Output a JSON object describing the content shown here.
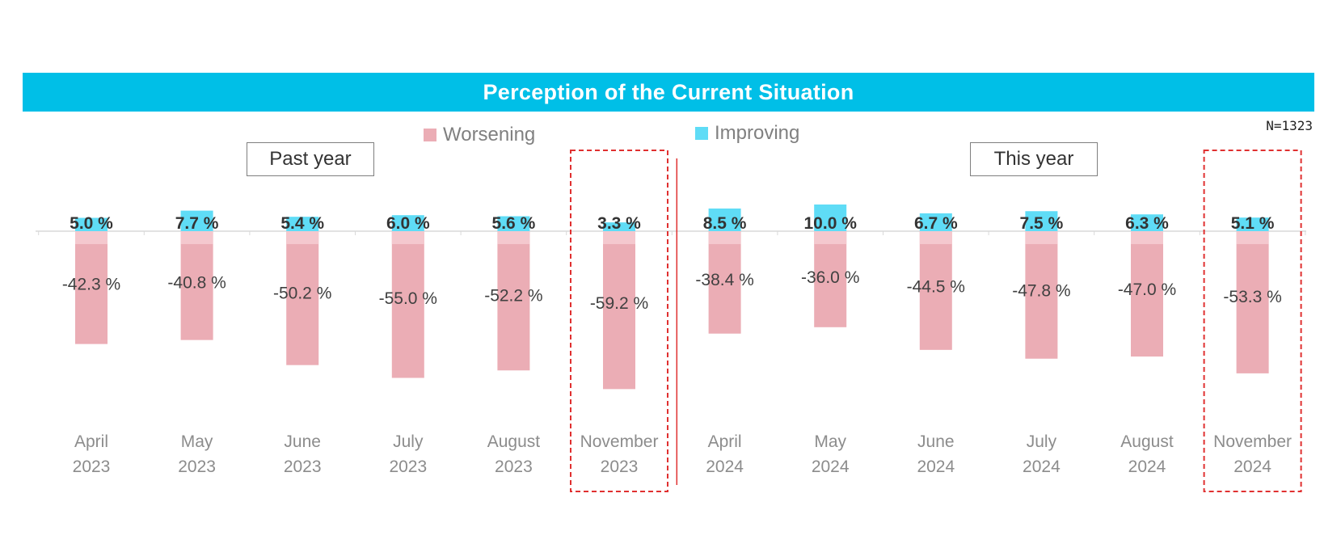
{
  "title": "Perception of the Current Situation",
  "sample_size": "N=1323",
  "period_labels": {
    "past": "Past year",
    "current": "This year"
  },
  "colors": {
    "title_bar": "#00bfe7",
    "worsening": "#ebadb5",
    "worsening_light": "#f4c8ce",
    "improving": "#5fdcf6",
    "highlight_border": "#e03030"
  },
  "chart_data": {
    "type": "bar",
    "title": "Perception of the Current Situation",
    "categories": [
      [
        "April",
        "2023"
      ],
      [
        "May",
        "2023"
      ],
      [
        "June",
        "2023"
      ],
      [
        "July",
        "2023"
      ],
      [
        "August",
        "2023"
      ],
      [
        "November",
        "2023"
      ],
      [
        "April",
        "2024"
      ],
      [
        "May",
        "2024"
      ],
      [
        "June",
        "2024"
      ],
      [
        "July",
        "2024"
      ],
      [
        "August",
        "2024"
      ],
      [
        "November",
        "2024"
      ]
    ],
    "series": [
      {
        "name": "Worsening",
        "values": [
          -42.3,
          -40.8,
          -50.2,
          -55.0,
          -52.2,
          -59.2,
          -38.4,
          -36.0,
          -44.5,
          -47.8,
          -47.0,
          -53.3
        ],
        "labels": [
          "-42.3 %",
          "-40.8 %",
          "-50.2 %",
          "-55.0 %",
          "-52.2 %",
          "-59.2 %",
          "-38.4 %",
          "-36.0 %",
          "-44.5 %",
          "-47.8 %",
          "-47.0 %",
          "-53.3 %"
        ]
      },
      {
        "name": "Improving",
        "values": [
          5.0,
          7.7,
          5.4,
          6.0,
          5.6,
          3.3,
          8.5,
          10.0,
          6.7,
          7.5,
          6.3,
          5.1
        ],
        "labels": [
          "5.0 %",
          "7.7 %",
          "5.4 %",
          "6.0 %",
          "5.6 %",
          "3.3 %",
          "8.5 %",
          "10.0 %",
          "6.7 %",
          "7.5 %",
          "6.3 %",
          "5.1 %"
        ]
      }
    ],
    "legend": [
      "Worsening",
      "Improving"
    ],
    "highlighted_categories": [
      5,
      11
    ],
    "ylim": [
      -60,
      10
    ],
    "xlabel": "",
    "ylabel": ""
  }
}
